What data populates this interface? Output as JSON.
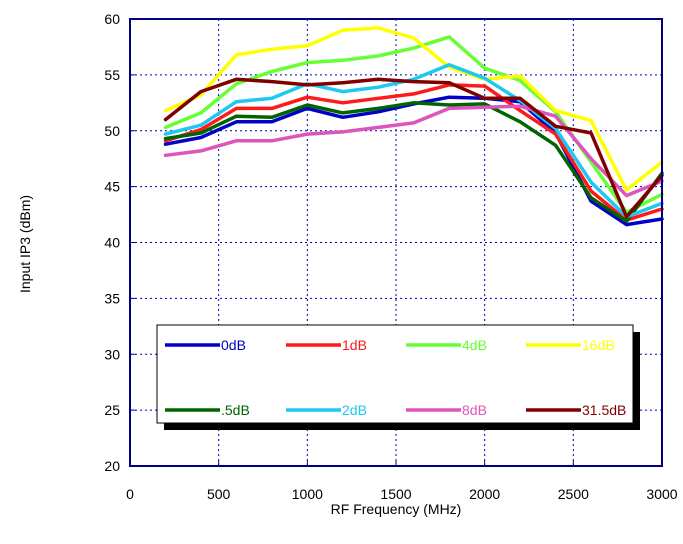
{
  "chart_data": {
    "type": "line",
    "xlabel": "RF Frequency (MHz)",
    "ylabel": "Input IP3 (dBm)",
    "xlim": [
      0,
      3000
    ],
    "ylim": [
      20,
      60
    ],
    "xticks": [
      0,
      500,
      1000,
      1500,
      2000,
      2500,
      3000
    ],
    "yticks": [
      20,
      25,
      30,
      35,
      40,
      45,
      50,
      55,
      60
    ],
    "grid": true,
    "legend_position": "center-bottom",
    "x": [
      200,
      400,
      600,
      800,
      1000,
      1200,
      1400,
      1600,
      1800,
      2000,
      2200,
      2400,
      2600,
      2800,
      3000
    ],
    "series": [
      {
        "name": "0dB",
        "color": "#0000c8",
        "values": [
          48.8,
          49.4,
          50.8,
          50.8,
          52.0,
          51.2,
          51.7,
          52.4,
          53.0,
          52.9,
          52.6,
          49.8,
          43.7,
          41.6,
          42.1
        ]
      },
      {
        "name": "1dB",
        "color": "#ff1a1a",
        "values": [
          49.1,
          50.1,
          52.0,
          52.0,
          53.0,
          52.5,
          52.9,
          53.3,
          54.1,
          54.0,
          51.8,
          49.7,
          44.6,
          42.0,
          43.0
        ]
      },
      {
        "name": "4dB",
        "color": "#66ff33",
        "values": [
          50.3,
          51.6,
          54.2,
          55.3,
          56.1,
          56.3,
          56.7,
          57.4,
          58.4,
          55.6,
          54.5,
          51.7,
          47.2,
          42.7,
          44.3
        ]
      },
      {
        "name": "16dB",
        "color": "#ffff00",
        "values": [
          51.8,
          53.2,
          56.8,
          57.3,
          57.6,
          59.0,
          59.2,
          58.3,
          55.7,
          54.6,
          54.9,
          51.8,
          50.9,
          44.7,
          47.2
        ]
      },
      {
        "name": ".5dB",
        "color": "#006400",
        "values": [
          49.3,
          49.8,
          51.3,
          51.2,
          52.3,
          51.6,
          52.0,
          52.5,
          52.3,
          52.4,
          50.8,
          48.7,
          44.0,
          41.9,
          46.2
        ]
      },
      {
        "name": "2dB",
        "color": "#1ec8f0",
        "values": [
          49.7,
          50.5,
          52.6,
          52.9,
          54.2,
          53.5,
          53.9,
          54.6,
          55.9,
          54.7,
          52.7,
          50.2,
          45.4,
          42.3,
          43.5
        ]
      },
      {
        "name": "8dB",
        "color": "#dd55bb",
        "values": [
          47.8,
          48.2,
          49.1,
          49.1,
          49.7,
          49.9,
          50.3,
          50.7,
          52.0,
          52.1,
          52.2,
          51.3,
          47.5,
          44.2,
          45.5
        ]
      },
      {
        "name": "31.5dB",
        "color": "#800000",
        "values": [
          51.0,
          53.5,
          54.6,
          54.4,
          54.1,
          54.3,
          54.6,
          54.4,
          54.3,
          52.9,
          52.9,
          50.4,
          49.8,
          42.3,
          46.0
        ]
      }
    ]
  }
}
